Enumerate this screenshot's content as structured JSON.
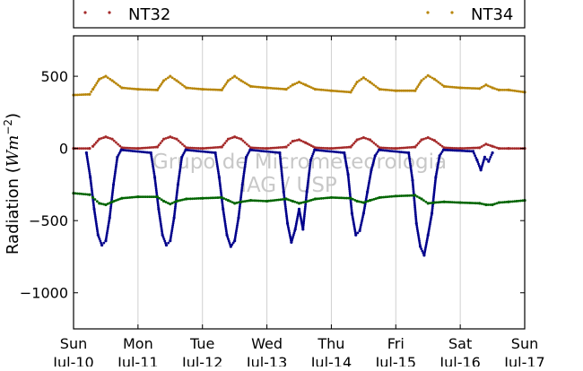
{
  "chart_data": {
    "type": "scatter",
    "ylabel": "Radiation ($Wm^{-2}$)",
    "ylabel_prefix": "Radiation (",
    "ylabel_unit": "Wm",
    "ylabel_exp": "−2",
    "ylabel_suffix": ")",
    "ylim": [
      -1250,
      780
    ],
    "y_ticks": [
      500,
      0,
      -500,
      -1000
    ],
    "y_tick_labels": [
      "500",
      "0",
      "−500",
      "−1000"
    ],
    "xlim": [
      "2013-07-10",
      "2013-07-17"
    ],
    "x_ticks": [
      "2013-07-10",
      "2013-07-11",
      "2013-07-12",
      "2013-07-13",
      "2013-07-14",
      "2013-07-15",
      "2013-07-16",
      "2013-07-17"
    ],
    "x_tick_labels": [
      [
        "Sun",
        "Jul-10"
      ],
      [
        "Mon",
        "Jul-11"
      ],
      [
        "Tue",
        "Jul-12"
      ],
      [
        "Wed",
        "Jul-13"
      ],
      [
        "Thu",
        "Jul-14"
      ],
      [
        "Fri",
        "Jul-15"
      ],
      [
        "Sat",
        "Jul-16"
      ],
      [
        "Sun",
        "Jul-17"
      ]
    ],
    "grid": "vertical",
    "legend_placement": "top",
    "legend": [
      {
        "name": "NT32",
        "color": "#a52a2a"
      },
      {
        "name": "NT34",
        "color": "#b8860b"
      }
    ],
    "watermark": [
      "Grupo de Micrometeorologia",
      "IAG / USP"
    ],
    "series": [
      {
        "name": "NT34",
        "color": "#b8860b",
        "x": [
          0.0,
          0.25,
          0.3,
          0.4,
          0.5,
          0.6,
          0.75,
          1.0,
          1.3,
          1.4,
          1.5,
          1.6,
          1.75,
          2.0,
          2.3,
          2.4,
          2.5,
          2.6,
          2.75,
          3.0,
          3.3,
          3.4,
          3.5,
          3.6,
          3.75,
          4.0,
          4.3,
          4.4,
          4.5,
          4.6,
          4.75,
          5.0,
          5.3,
          5.4,
          5.5,
          5.6,
          5.75,
          6.0,
          6.3,
          6.4,
          6.5,
          6.6,
          6.75,
          7.0
        ],
        "y": [
          370,
          375,
          410,
          480,
          500,
          470,
          420,
          410,
          405,
          470,
          500,
          470,
          420,
          410,
          405,
          470,
          500,
          470,
          430,
          420,
          410,
          440,
          460,
          440,
          410,
          400,
          390,
          460,
          490,
          460,
          410,
          400,
          400,
          470,
          505,
          480,
          430,
          420,
          415,
          440,
          420,
          405,
          405,
          390
        ]
      },
      {
        "name": "NT32",
        "color": "#a52a2a",
        "x": [
          0.0,
          0.25,
          0.3,
          0.4,
          0.5,
          0.6,
          0.75,
          1.0,
          1.3,
          1.4,
          1.5,
          1.6,
          1.75,
          2.0,
          2.3,
          2.4,
          2.5,
          2.6,
          2.75,
          3.0,
          3.3,
          3.4,
          3.5,
          3.6,
          3.75,
          4.0,
          4.3,
          4.4,
          4.5,
          4.6,
          4.75,
          5.0,
          5.3,
          5.4,
          5.5,
          5.6,
          5.75,
          6.0,
          6.3,
          6.4,
          6.5,
          6.6,
          6.75,
          7.0
        ],
        "y": [
          0,
          0,
          15,
          65,
          80,
          65,
          5,
          0,
          10,
          65,
          80,
          65,
          5,
          0,
          10,
          65,
          80,
          65,
          5,
          0,
          10,
          50,
          60,
          40,
          5,
          0,
          10,
          60,
          75,
          60,
          5,
          0,
          10,
          60,
          75,
          55,
          5,
          0,
          5,
          30,
          15,
          0,
          0,
          0
        ]
      },
      {
        "name": "",
        "color": "#00008b",
        "x": [
          0.2,
          0.26,
          0.32,
          0.38,
          0.44,
          0.5,
          0.56,
          0.62,
          0.68,
          0.74,
          1.2,
          1.26,
          1.32,
          1.38,
          1.44,
          1.5,
          1.56,
          1.62,
          1.68,
          1.74,
          2.2,
          2.26,
          2.32,
          2.38,
          2.44,
          2.5,
          2.56,
          2.62,
          2.68,
          2.74,
          3.2,
          3.26,
          3.32,
          3.38,
          3.44,
          3.5,
          3.56,
          3.62,
          3.68,
          3.74,
          4.2,
          4.26,
          4.32,
          4.38,
          4.44,
          4.5,
          4.56,
          4.62,
          4.68,
          4.74,
          5.2,
          5.26,
          5.32,
          5.38,
          5.44,
          5.5,
          5.56,
          5.62,
          5.68,
          5.74,
          6.2,
          6.26,
          6.32,
          6.38,
          6.44,
          6.5
        ],
        "y": [
          -30,
          -200,
          -420,
          -600,
          -670,
          -640,
          -480,
          -250,
          -60,
          -10,
          -30,
          -200,
          -420,
          -600,
          -670,
          -640,
          -480,
          -250,
          -60,
          -10,
          -30,
          -200,
          -420,
          -600,
          -680,
          -640,
          -480,
          -250,
          -60,
          -10,
          -30,
          -300,
          -520,
          -650,
          -560,
          -420,
          -560,
          -300,
          -80,
          -10,
          -30,
          -180,
          -450,
          -600,
          -570,
          -450,
          -300,
          -150,
          -50,
          -10,
          -30,
          -220,
          -520,
          -680,
          -740,
          -600,
          -450,
          -200,
          -50,
          -10,
          -20,
          -80,
          -150,
          -60,
          -90,
          -30
        ]
      },
      {
        "name": "",
        "color": "#006400",
        "x": [
          0.0,
          0.25,
          0.3,
          0.4,
          0.5,
          0.6,
          0.75,
          1.0,
          1.3,
          1.4,
          1.5,
          1.6,
          1.75,
          2.0,
          2.3,
          2.4,
          2.5,
          2.6,
          2.75,
          3.0,
          3.3,
          3.4,
          3.5,
          3.6,
          3.75,
          4.0,
          4.3,
          4.4,
          4.5,
          4.6,
          4.75,
          5.0,
          5.3,
          5.4,
          5.5,
          5.6,
          5.75,
          6.0,
          6.3,
          6.4,
          6.5,
          6.6,
          6.75,
          7.0
        ],
        "y": [
          -310,
          -320,
          -340,
          -380,
          -390,
          -370,
          -345,
          -335,
          -335,
          -365,
          -385,
          -365,
          -350,
          -345,
          -340,
          -360,
          -380,
          -370,
          -360,
          -365,
          -350,
          -365,
          -380,
          -370,
          -350,
          -340,
          -345,
          -365,
          -375,
          -360,
          -340,
          -330,
          -325,
          -350,
          -380,
          -375,
          -370,
          -375,
          -380,
          -390,
          -390,
          -375,
          -370,
          -360
        ]
      }
    ]
  }
}
